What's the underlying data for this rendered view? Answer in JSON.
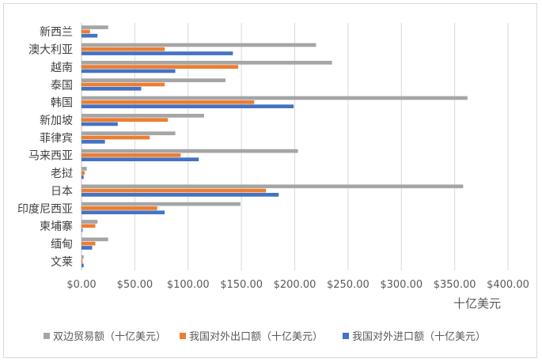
{
  "chart_data": {
    "type": "bar",
    "orientation": "horizontal",
    "xlabel": "十亿美元",
    "xlim": [
      0,
      400
    ],
    "xticks": [
      0,
      50,
      100,
      150,
      200,
      250,
      300,
      350,
      400
    ],
    "xtick_labels": [
      "$0.00",
      "$50.00",
      "$100.00",
      "$150.00",
      "$200.00",
      "$250.00",
      "$300.00",
      "$350.00",
      "$400.00"
    ],
    "grid": true,
    "legend_position": "bottom",
    "categories": [
      "新西兰",
      "澳大利亚",
      "越南",
      "泰国",
      "韩国",
      "新加坡",
      "菲律宾",
      "马来西亚",
      "老挝",
      "日本",
      "印度尼西亚",
      "柬埔寨",
      "缅甸",
      "文莱"
    ],
    "series": [
      {
        "name": "双边贸易额（十亿美元）",
        "color": "#a5a5a5",
        "values": [
          25,
          220,
          235,
          135,
          362,
          115,
          88,
          203,
          5,
          358,
          149,
          15,
          25,
          2
        ]
      },
      {
        "name": "我国对外出口额（十亿美元）",
        "color": "#ed7d31",
        "values": [
          8,
          78,
          147,
          78,
          162,
          81,
          64,
          93,
          3,
          173,
          71,
          13,
          13,
          1
        ]
      },
      {
        "name": "我国对外进口额（十亿美元）",
        "color": "#4472c4",
        "values": [
          15,
          142,
          88,
          56,
          199,
          34,
          22,
          110,
          2,
          185,
          78,
          1,
          10,
          2
        ]
      }
    ]
  }
}
